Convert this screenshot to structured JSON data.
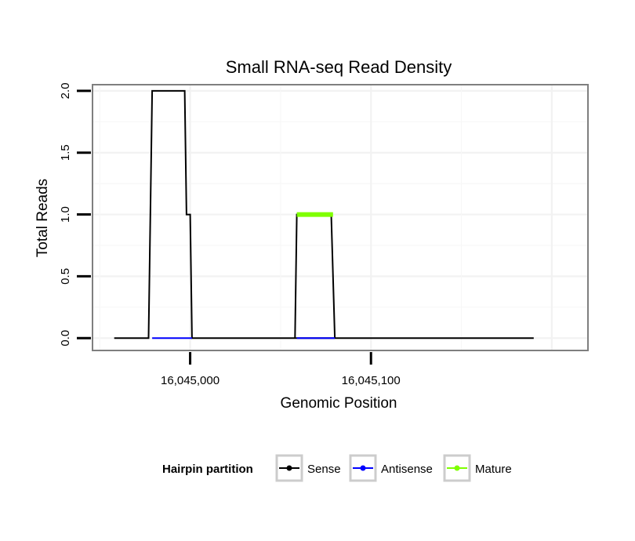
{
  "chart_data": {
    "type": "line",
    "title": "Small RNA-seq Read Density",
    "xlabel": "Genomic Position",
    "ylabel": "Total Reads",
    "xlim": [
      16044946,
      16045220
    ],
    "ylim": [
      -0.1,
      2.05
    ],
    "x_ticks": [
      {
        "value": 16045000,
        "label": "16,045,000"
      },
      {
        "value": 16045100,
        "label": "16,045,100"
      }
    ],
    "y_ticks": [
      {
        "value": 0.0,
        "label": "0.0"
      },
      {
        "value": 0.5,
        "label": "0.5"
      },
      {
        "value": 1.0,
        "label": "1.0"
      },
      {
        "value": 1.5,
        "label": "1.5"
      },
      {
        "value": 2.0,
        "label": "2.0"
      }
    ],
    "grid": true,
    "legend": {
      "title": "Hairpin partition",
      "position": "bottom"
    },
    "series": [
      {
        "name": "Sense",
        "color": "#000000",
        "x": [
          16044958,
          16044977,
          16044979,
          16044985,
          16044997,
          16044998,
          16045000,
          16045001,
          16045158,
          16045190
        ],
        "y": [
          0,
          0,
          2,
          2,
          2,
          1,
          1,
          0,
          0,
          0
        ]
      },
      {
        "name": "Sense",
        "color": "#000000",
        "x": [
          16045058,
          16045059,
          16045078,
          16045080
        ],
        "y": [
          0,
          1,
          1,
          0
        ]
      },
      {
        "name": "Antisense",
        "color": "#0000ff",
        "x": [
          16044979,
          16045001
        ],
        "y": [
          0,
          0
        ]
      },
      {
        "name": "Antisense",
        "color": "#0000ff",
        "x": [
          16045059,
          16045080
        ],
        "y": [
          0,
          0
        ]
      },
      {
        "name": "Mature",
        "color": "#7fff00",
        "x": [
          16045059,
          16045079
        ],
        "y": [
          1,
          1
        ]
      }
    ],
    "legend_entries": [
      {
        "name": "Sense",
        "color": "#000000"
      },
      {
        "name": "Antisense",
        "color": "#0000ff"
      },
      {
        "name": "Mature",
        "color": "#7fff00"
      }
    ]
  }
}
